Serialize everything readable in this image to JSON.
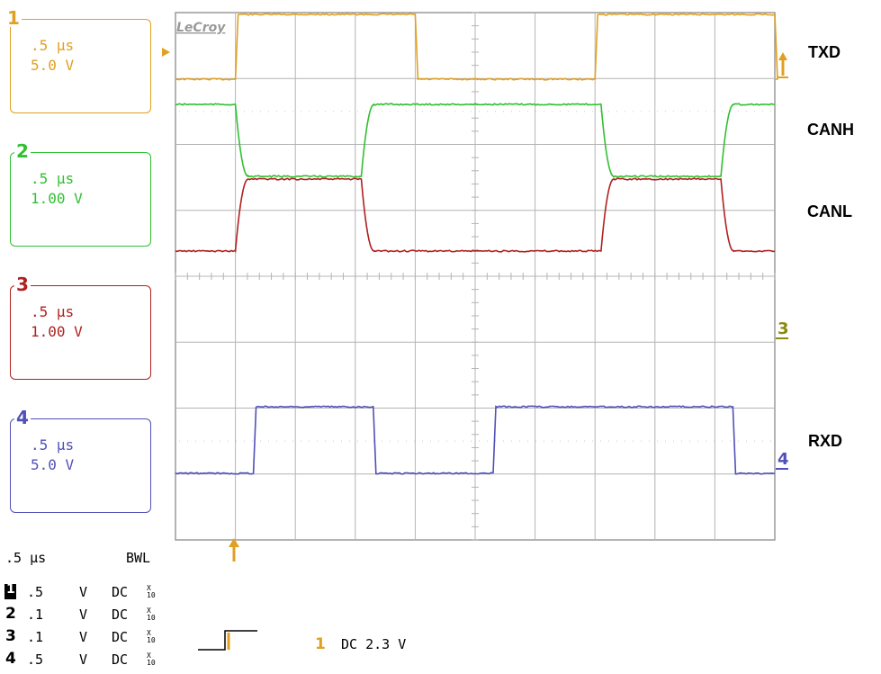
{
  "brand": "LeCroy",
  "channels": [
    {
      "num": "1",
      "time": ".5 µs",
      "volts": "5.0 V",
      "color": "#e0a020"
    },
    {
      "num": "2",
      "time": ".5 µs",
      "volts": "1.00 V",
      "color": "#30c030"
    },
    {
      "num": "3",
      "time": ".5 µs",
      "volts": "1.00 V",
      "color": "#b02020"
    },
    {
      "num": "4",
      "time": ".5 µs",
      "volts": "5.0 V",
      "color": "#5050b8"
    }
  ],
  "signal_labels": {
    "txd": "TXD",
    "canh": "CANH",
    "canl": "CANL",
    "rxd": "RXD"
  },
  "markers": {
    "ch1": "1",
    "ch3": "3",
    "ch4": "4"
  },
  "timebase": {
    "value": ".5 µs",
    "bwl": "BWL"
  },
  "channel_settings": [
    {
      "num": "1",
      "value": ".5",
      "unit": "V",
      "coupling": "DC",
      "probe_top": "X",
      "probe_bottom": "10"
    },
    {
      "num": "2",
      "value": ".1",
      "unit": "V",
      "coupling": "DC",
      "probe_top": "X",
      "probe_bottom": "10"
    },
    {
      "num": "3",
      "value": ".1",
      "unit": "V",
      "coupling": "DC",
      "probe_top": "X",
      "probe_bottom": "10"
    },
    {
      "num": "4",
      "value": ".5",
      "unit": "V",
      "coupling": "DC",
      "probe_top": "X",
      "probe_bottom": "10"
    }
  ],
  "trigger": {
    "source": "1",
    "text": "DC 2.3 V",
    "color": "#e0a020"
  },
  "chart_data": {
    "type": "line",
    "xlabel": "",
    "ylabel": "",
    "x_unit": "µs",
    "x_range": [
      0,
      5
    ],
    "divisions": {
      "x": 10,
      "y": 8
    },
    "grid": true,
    "series": [
      {
        "name": "TXD",
        "channel": 1,
        "low": 0,
        "high": 5,
        "edges": [
          0.5,
          2.0,
          3.5,
          5.0
        ],
        "start_level": "low"
      },
      {
        "name": "CANH",
        "channel": 2,
        "low": 2.5,
        "high": 3.6,
        "edges": [
          0.5,
          1.55,
          3.55,
          4.55
        ],
        "start_level": "high"
      },
      {
        "name": "CANL",
        "channel": 3,
        "low": 1.4,
        "high": 2.5,
        "edges": [
          0.5,
          1.55,
          3.55,
          4.55
        ],
        "start_level": "low"
      },
      {
        "name": "RXD",
        "channel": 4,
        "low": 0,
        "high": 5,
        "edges": [
          0.65,
          1.65,
          2.65,
          4.65
        ],
        "start_level": "low"
      }
    ]
  }
}
